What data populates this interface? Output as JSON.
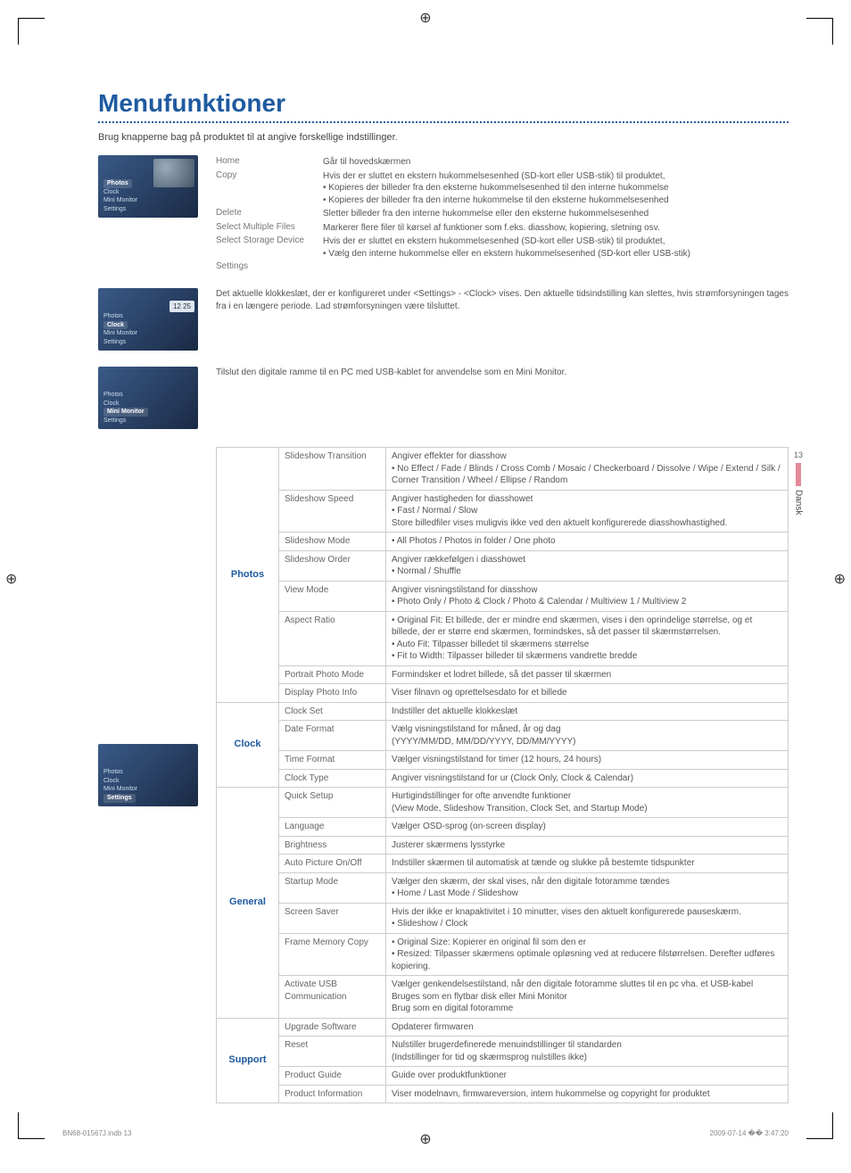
{
  "title": "Menufunktioner",
  "subtitle": "Brug knapperne bag på produktet til at angive forskellige indstillinger.",
  "side": {
    "page_num": "13",
    "lang": "Dansk"
  },
  "thumbs": {
    "photos": {
      "highlight": "Photos",
      "items": [
        "Clock",
        "Mini Monitor",
        "Settings"
      ]
    },
    "clock": {
      "pre": [
        "Photos"
      ],
      "highlight": "Clock",
      "items": [
        "Mini Monitor",
        "Settings"
      ],
      "badge": "12 25"
    },
    "mini": {
      "pre": [
        "Photos",
        "Clock"
      ],
      "highlight": "Mini Monitor",
      "items": [
        "Settings"
      ]
    },
    "settings": {
      "pre": [
        "Photos",
        "Clock",
        "Mini Monitor"
      ],
      "highlight": "Settings",
      "items": []
    }
  },
  "menu1": [
    {
      "label": "Home",
      "desc": "Går til hovedskærmen"
    },
    {
      "label": "Copy",
      "desc": "Hvis der er sluttet en ekstern hukommelsesenhed (SD-kort eller USB-stik) til produktet,\n• Kopieres der billeder fra den eksterne hukommelsesenhed til den interne hukommelse\n• Kopieres der billeder fra den interne hukommelse til den eksterne hukommelsesenhed"
    },
    {
      "label": "Delete",
      "desc": "Sletter billeder fra den interne hukommelse eller den eksterne hukommelsesenhed"
    },
    {
      "label": "Select Multiple Files",
      "desc": "Markerer flere filer til kørsel af funktioner som f.eks. diasshow, kopiering, sletning osv."
    },
    {
      "label": "Select Storage Device",
      "desc": "Hvis der er sluttet en ekstern hukommelsesenhed (SD-kort eller USB-stik) til produktet,\n• Vælg den interne hukommelse eller en ekstern hukommelsesenhed (SD-kort eller USB-stik)"
    },
    {
      "label": "Settings",
      "desc": ""
    }
  ],
  "clock_text": "Det aktuelle klokkeslæt, der er konfigureret under <Settings> - <Clock> vises. Den aktuelle tidsindstilling kan slettes, hvis strømforsyningen tages fra i en længere periode. Lad strømforsyningen være tilsluttet.",
  "mini_text": "Tilslut den digitale ramme til en PC med USB-kablet for anvendelse som en Mini Monitor.",
  "settings_table": [
    {
      "category": "Photos",
      "rows": [
        {
          "k": "Slideshow Transition",
          "v": "Angiver effekter for diasshow\n• No Effect / Fade / Blinds / Cross Comb / Mosaic / Checkerboard / Dissolve / Wipe / Extend / Silk / Corner Transition / Wheel / Ellipse / Random"
        },
        {
          "k": "Slideshow Speed",
          "v": "Angiver hastigheden for diasshowet\n• Fast / Normal / Slow\nStore billedfiler vises muligvis ikke ved den aktuelt konfigurerede diasshowhastighed."
        },
        {
          "k": "Slideshow Mode",
          "v": "• All Photos / Photos in folder / One photo"
        },
        {
          "k": "Slideshow Order",
          "v": "Angiver rækkefølgen i diasshowet\n• Normal / Shuffle"
        },
        {
          "k": "View Mode",
          "v": "Angiver visningstilstand for diasshow\n• Photo Only / Photo & Clock / Photo & Calendar / Multiview 1 / Multiview 2"
        },
        {
          "k": "Aspect Ratio",
          "v": "• Original Fit: Et billede, der er mindre end skærmen, vises i den oprindelige størrelse, og et billede, der er større end skærmen, formindskes, så det passer til skærmstørrelsen.\n• Auto Fit: Tilpasser billedet til skærmens størrelse\n• Fit to Width: Tilpasser billeder til skærmens vandrette bredde"
        },
        {
          "k": "Portrait Photo Mode",
          "v": "Formindsker et lodret billede, så det passer til skærmen"
        },
        {
          "k": "Display Photo Info",
          "v": "Viser filnavn og oprettelsesdato for et billede"
        }
      ]
    },
    {
      "category": "Clock",
      "rows": [
        {
          "k": "Clock Set",
          "v": "Indstiller det aktuelle klokkeslæt"
        },
        {
          "k": "Date Format",
          "v": "Vælg visningstilstand for måned, år og dag\n(YYYY/MM/DD, MM/DD/YYYY, DD/MM/YYYY)"
        },
        {
          "k": "Time Format",
          "v": "Vælger visningstilstand for timer (12 hours, 24 hours)"
        },
        {
          "k": "Clock Type",
          "v": "Angiver visningstilstand for ur (Clock Only, Clock & Calendar)"
        }
      ]
    },
    {
      "category": "General",
      "rows": [
        {
          "k": "Quick Setup",
          "v": "Hurtigindstillinger for ofte anvendte funktioner\n(View Mode, Slideshow Transition, Clock Set, and Startup Mode)"
        },
        {
          "k": "Language",
          "v": "Vælger OSD-sprog (on-screen display)"
        },
        {
          "k": "Brightness",
          "v": "Justerer skærmens lysstyrke"
        },
        {
          "k": "Auto Picture On/Off",
          "v": "Indstiller skærmen til automatisk at tænde og slukke på bestemte tidspunkter"
        },
        {
          "k": "Startup Mode",
          "v": "Vælger den skærm, der skal vises, når den digitale fotoramme tændes\n• Home / Last Mode / Slideshow"
        },
        {
          "k": "Screen Saver",
          "v": "Hvis der ikke er knapaktivitet i 10 minutter, vises den aktuelt konfigurerede pauseskærm.\n• Slideshow / Clock"
        },
        {
          "k": "Frame Memory Copy",
          "v": "• Original Size: Kopierer en original fil som den er\n• Resized: Tilpasser skærmens optimale opløsning ved at reducere filstørrelsen. Derefter udføres kopiering."
        },
        {
          "k": "Activate USB Communication",
          "v": "Vælger genkendelsestilstand, når den digitale fotoramme sluttes til en pc vha. et USB-kabel\nBruges som en flytbar disk eller Mini Monitor\nBrug som en digital fotoramme"
        }
      ]
    },
    {
      "category": "Support",
      "rows": [
        {
          "k": "Upgrade Software",
          "v": "Opdaterer firmwaren"
        },
        {
          "k": "Reset",
          "v": "Nulstiller brugerdefinerede menuindstillinger til standarden\n(Indstillinger for tid og skærmsprog nulstilles ikke)"
        },
        {
          "k": "Product Guide",
          "v": "Guide over produktfunktioner"
        },
        {
          "k": "Product Information",
          "v": "Viser modelnavn, firmwareversion, intern hukommelse og copyright for produktet"
        }
      ]
    }
  ],
  "footer": {
    "left": "BN68-01567J.indb   13",
    "right": "2009-07-14   �� 3:47:20"
  }
}
